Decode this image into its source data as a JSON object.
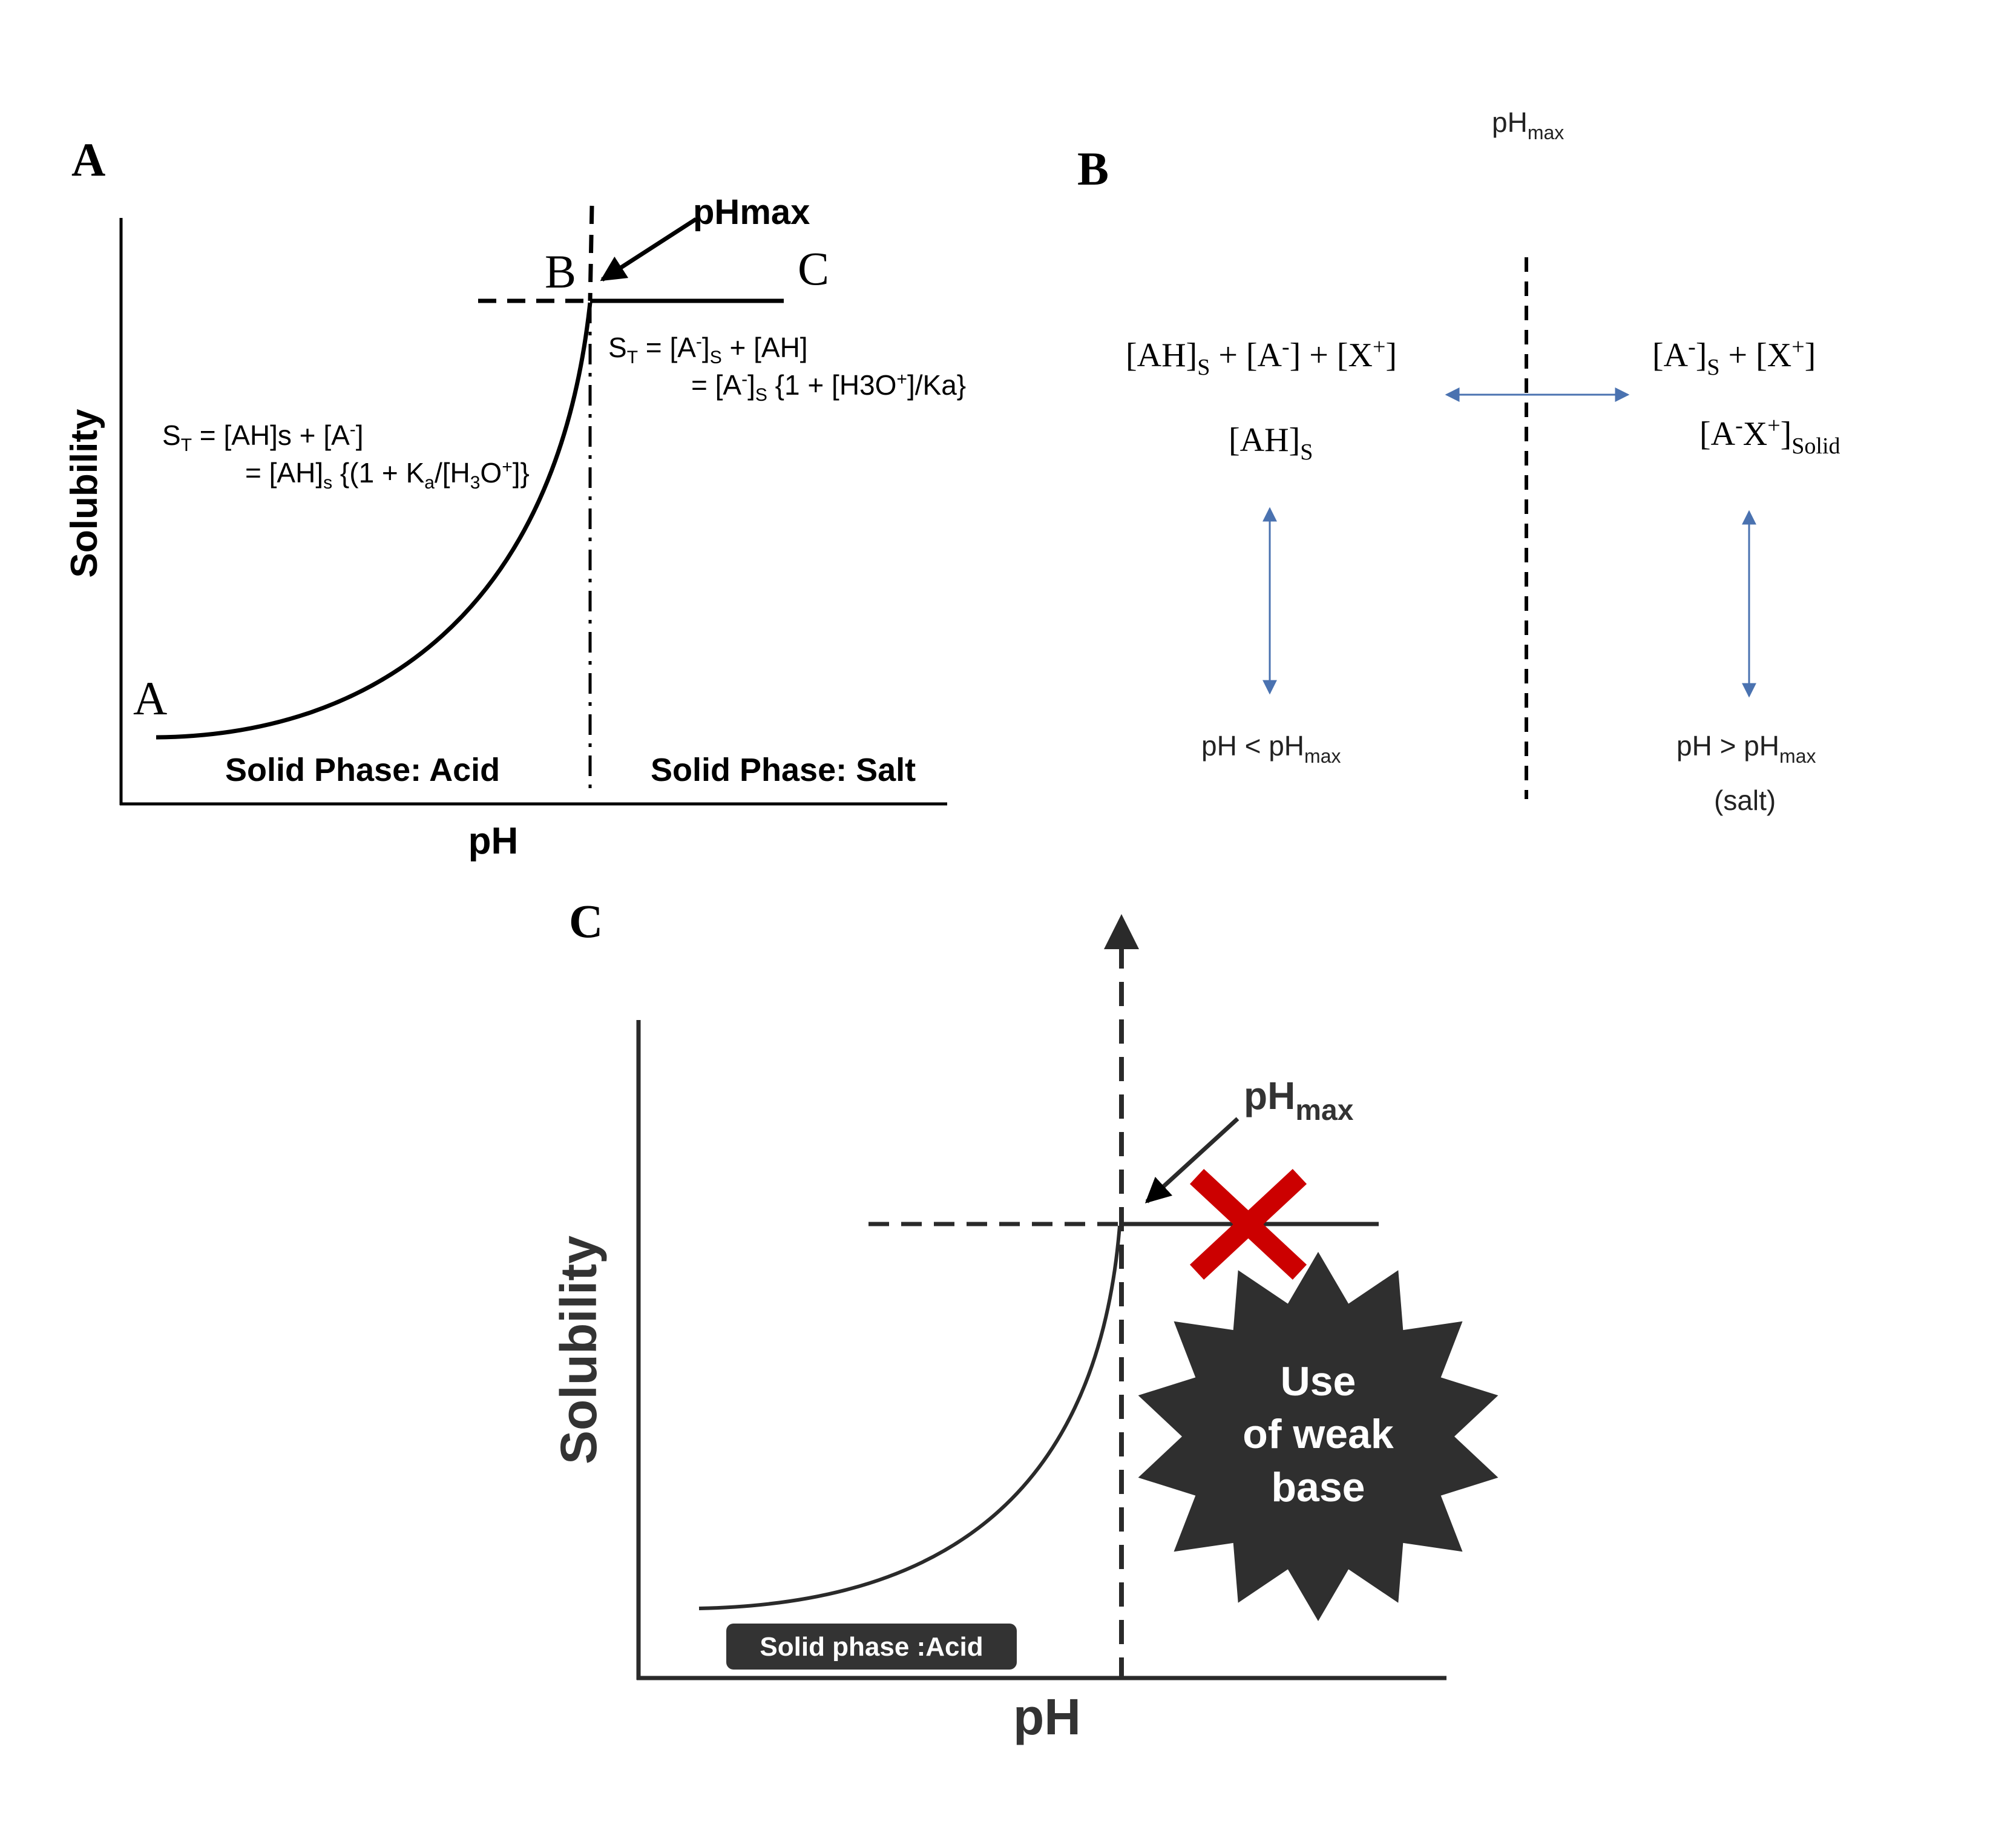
{
  "panel_a": {
    "label": "A",
    "y_axis_label": "Solubility",
    "x_axis_label": "pH",
    "point_a": "A",
    "point_b": "B",
    "point_c": "C",
    "pHmax_label": "pHmax",
    "eq_left_line1": "S",
    "eq_left_line1_sub": "T",
    "eq_left_line1_rest": " = [AH]s + [A",
    "eq_left_line1_sup": "-",
    "eq_left_line1_end": "]",
    "eq_left_line2": "= [AH]",
    "eq_left_line2_sub": "s",
    "eq_left_line2_rest": " {(1 + K",
    "eq_left_line2_sub2": "a",
    "eq_left_line2_rest2": "/[H",
    "eq_left_line2_sub3": "3",
    "eq_left_line2_rest3": "O",
    "eq_left_line2_sup": "+",
    "eq_left_line2_end": "]}",
    "eq_right_line1": "S",
    "eq_right_line1_sub": "T",
    "eq_right_line1_rest": " = [A",
    "eq_right_line1_sup": "-",
    "eq_right_line1_rest2": "]",
    "eq_right_line1_sub2": "S",
    "eq_right_line1_end": " + [AH]",
    "eq_right_line2": "= [A",
    "eq_right_line2_sup": "-",
    "eq_right_line2_rest": "]",
    "eq_right_line2_sub": "S",
    "eq_right_line2_rest2": " {1 + [H3O",
    "eq_right_line2_sup2": "+",
    "eq_right_line2_end": "]/Ka}",
    "region_left": "Solid Phase: Acid",
    "region_right": "Solid Phase: Salt"
  },
  "panel_b": {
    "label": "B",
    "top_label": "pH",
    "top_label_sub": "max",
    "left_eq_a": "[AH]",
    "left_eq_a_sub": "S",
    "left_eq_b": " + [A",
    "left_eq_b_sup": "-",
    "left_eq_c": "] + [X",
    "left_eq_c_sup": "+",
    "left_eq_d": "]",
    "left_solid": "[AH]",
    "left_solid_sub": "S",
    "right_eq_a": "[A",
    "right_eq_a_sup": "-",
    "right_eq_b": "]",
    "right_eq_b_sub": "S",
    "right_eq_c": " + [X",
    "right_eq_c_sup": "+",
    "right_eq_d": "]",
    "right_solid_a": "[A",
    "right_solid_a_sup": "-",
    "right_solid_b": "X",
    "right_solid_b_sup": "+",
    "right_solid_c": "]",
    "right_solid_sub": "Solid",
    "left_cond": "pH < pH",
    "left_cond_sub": "max",
    "right_cond": "pH > pH",
    "right_cond_sub": "max",
    "right_cond_note": "(salt)"
  },
  "panel_c": {
    "label": "C",
    "y_axis_label": "Solubility",
    "x_axis_label": "pH",
    "pHmax_label": "pH",
    "pHmax_sub": "max",
    "region_label": "Solid phase :Acid",
    "starburst_line1": "Use",
    "starburst_line2": "of weak",
    "starburst_line3": "base",
    "cross_color": "#cc0000"
  }
}
